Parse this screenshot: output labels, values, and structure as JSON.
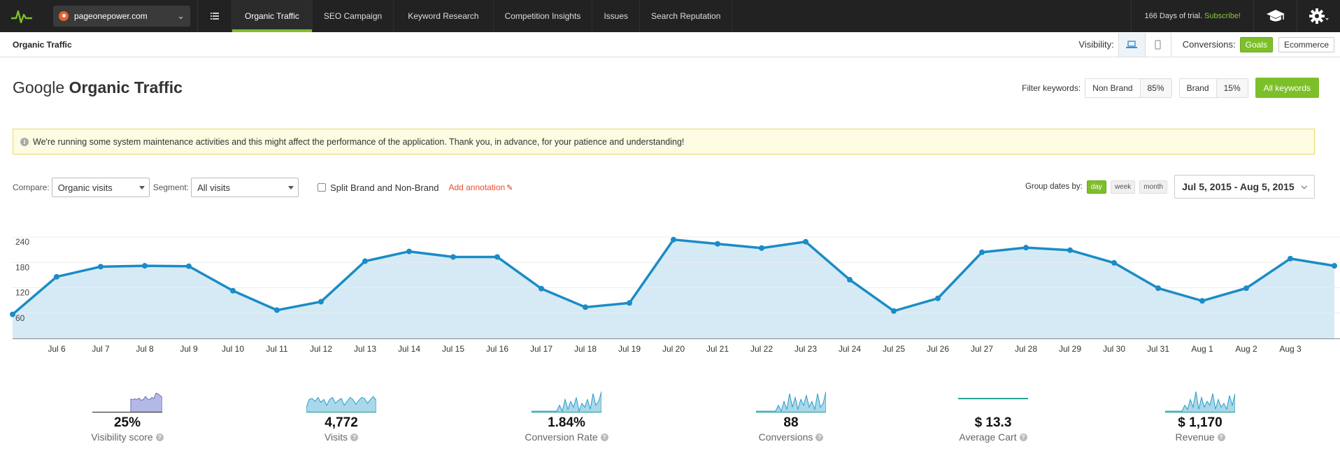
{
  "topnav": {
    "site": "pageonepower.com",
    "items": [
      {
        "label": "Organic Traffic",
        "active": true
      },
      {
        "label": "SEO Campaign",
        "active": false
      },
      {
        "label": "Keyword Research",
        "active": false
      },
      {
        "label": "Competition Insights",
        "active": false
      },
      {
        "label": "Issues",
        "active": false
      },
      {
        "label": "Search Reputation",
        "active": false
      }
    ],
    "trial_text": "166 Days of trial.",
    "subscribe_label": "Subscribe!"
  },
  "subbar": {
    "crumb": "Organic Traffic",
    "visibility_label": "Visibility:",
    "conversions_label": "Conversions:",
    "goals_label": "Goals",
    "ecommerce_label": "Ecommerce"
  },
  "header": {
    "title_prefix": "Google",
    "title_bold": "Organic Traffic",
    "filter_label": "Filter keywords:",
    "non_brand_label": "Non Brand",
    "non_brand_pct": "85%",
    "brand_label": "Brand",
    "brand_pct": "15%",
    "all_keywords_label": "All keywords"
  },
  "notice": {
    "text": "We're running some system maintenance activities and this might affect the performance of the application. Thank you, in advance, for your patience and understanding!"
  },
  "controls": {
    "compare_label": "Compare:",
    "compare_value": "Organic visits",
    "segment_label": "Segment:",
    "segment_value": "All visits",
    "split_label": "Split Brand and Non-Brand",
    "annotation_label": "Add annotation",
    "group_label": "Group dates by:",
    "group_options": [
      "day",
      "week",
      "month"
    ],
    "date_range": "Jul 5, 2015 - Aug 5, 2015"
  },
  "colors": {
    "accent_green": "#7dbf28",
    "line": "#1a8cc6",
    "area": "#d6eaf6"
  },
  "chart_data": {
    "type": "area",
    "x": [
      "Jul 5",
      "Jul 6",
      "Jul 7",
      "Jul 8",
      "Jul 9",
      "Jul 10",
      "Jul 11",
      "Jul 12",
      "Jul 13",
      "Jul 14",
      "Jul 15",
      "Jul 16",
      "Jul 17",
      "Jul 18",
      "Jul 19",
      "Jul 20",
      "Jul 21",
      "Jul 22",
      "Jul 23",
      "Jul 24",
      "Jul 25",
      "Jul 26",
      "Jul 27",
      "Jul 28",
      "Jul 29",
      "Jul 30",
      "Jul 31",
      "Aug 1",
      "Aug 2",
      "Aug 3",
      "Aug 4"
    ],
    "tick_labels": [
      "Jul 6",
      "Jul 7",
      "Jul 8",
      "Jul 9",
      "Jul 10",
      "Jul 11",
      "Jul 12",
      "Jul 13",
      "Jul 14",
      "Jul 15",
      "Jul 16",
      "Jul 17",
      "Jul 18",
      "Jul 19",
      "Jul 20",
      "Jul 21",
      "Jul 22",
      "Jul 23",
      "Jul 24",
      "Jul 25",
      "Jul 26",
      "Jul 27",
      "Jul 28",
      "Jul 29",
      "Jul 30",
      "Jul 31",
      "Aug 1",
      "Aug 2",
      "Aug 3"
    ],
    "series": [
      {
        "values": [
          57,
          146,
          170,
          172,
          171,
          113,
          67,
          87,
          183,
          206,
          193,
          193,
          118,
          74,
          84,
          234,
          224,
          214,
          229,
          139,
          65,
          95,
          204,
          215,
          209,
          179,
          119,
          89,
          119,
          189,
          172
        ]
      }
    ],
    "yticks": [
      60,
      120,
      180,
      240
    ],
    "ylim": [
      0,
      255
    ]
  },
  "metrics": [
    {
      "value": "25%",
      "label": "Visibility score",
      "spark": [
        0.62,
        0.58,
        0.63,
        0.6,
        0.66,
        0.55,
        0.6,
        0.75,
        0.62,
        0.58,
        0.7,
        0.65,
        0.92,
        0.88,
        0.8,
        0.7
      ],
      "flat_left": true
    },
    {
      "value": "4,772",
      "label": "Visits",
      "spark": [
        0.2,
        0.6,
        0.65,
        0.5,
        0.7,
        0.45,
        0.6,
        0.3,
        0.6,
        0.7,
        0.4,
        0.55,
        0.65,
        0.3,
        0.5,
        0.7,
        0.6,
        0.35,
        0.55,
        0.7,
        0.65,
        0.4,
        0.6,
        0.75,
        0.55
      ]
    },
    {
      "value": "1.84%",
      "label": "Conversion Rate",
      "spark": [
        0,
        0,
        0,
        0,
        0,
        0,
        0,
        0,
        0,
        0,
        0.3,
        0,
        0.6,
        0.1,
        0.5,
        0.2,
        0.7,
        0,
        0.4,
        0.2,
        0.6,
        0.1,
        0.9,
        0.3,
        0.5,
        1.0
      ]
    },
    {
      "value": "88",
      "label": "Conversions",
      "spark": [
        0,
        0,
        0,
        0,
        0,
        0,
        0,
        0,
        0.3,
        0,
        0.5,
        0.1,
        0.9,
        0.2,
        0.7,
        0.1,
        0.6,
        0.3,
        0.8,
        0.2,
        0.5,
        0.1,
        0.9,
        0.2,
        0.4,
        1.0
      ]
    },
    {
      "value": "$ 13.3",
      "label": "Average Cart",
      "spark": [
        0.5,
        0.5,
        0.5,
        0.5,
        0.5,
        0.5,
        0.5,
        0.5,
        0.5,
        0.5
      ],
      "flat": true
    },
    {
      "value": "$ 1,170",
      "label": "Revenue",
      "spark": [
        0,
        0,
        0,
        0,
        0,
        0,
        0,
        0.3,
        0.1,
        0.6,
        0.2,
        1.0,
        0.1,
        0.7,
        0.2,
        0.5,
        0.3,
        0.9,
        0.1,
        0.6,
        0.2,
        0.4,
        0.1,
        0.8,
        0.3,
        0.9
      ]
    }
  ]
}
